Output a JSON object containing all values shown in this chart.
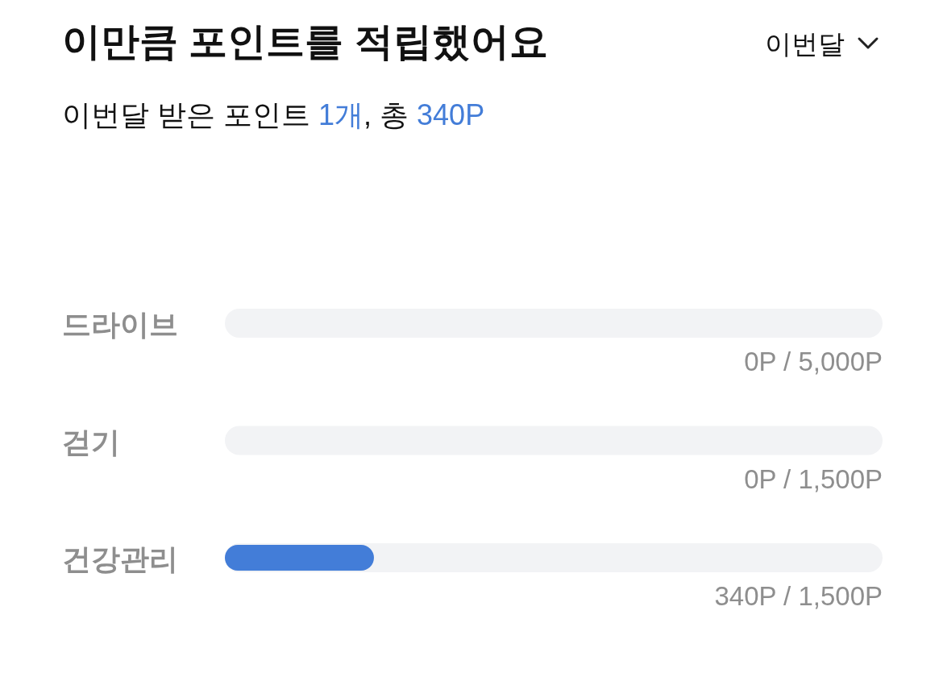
{
  "chart_data": [
    {
      "type": "bar",
      "orientation": "horizontal",
      "title": "이만큼 포인트를 적립했어요",
      "subtitle": "이번달 받은 포인트 1개, 총 340P",
      "annotations": [
        "이번달"
      ],
      "categories": [
        "드라이브"
      ],
      "series": [
        {
          "color": "#f2f3f5",
          "values": [
            5000
          ],
          "value_labels": [
            "0P / 5,000P"
          ]
        },
        {
          "color": "#437dd8",
          "values": [
            0
          ]
        }
      ],
      "tick_labels": "y"
    },
    {
      "type": "bar",
      "orientation": "horizontal",
      "categories": [
        "걷기"
      ],
      "series": [
        {
          "color": "#f2f3f5",
          "values": [
            1500
          ],
          "value_labels": [
            "0P / 1,500P"
          ]
        },
        {
          "color": "#437dd8",
          "values": [
            0
          ]
        }
      ],
      "tick_labels": "y"
    },
    {
      "type": "bar",
      "orientation": "horizontal",
      "categories": [
        "건강관리"
      ],
      "series": [
        {
          "color": "#f2f3f5",
          "values": [
            1500
          ],
          "value_labels": [
            "340P / 1,500P"
          ]
        },
        {
          "color": "#437dd8",
          "values": [
            340
          ]
        }
      ],
      "tick_labels": "y"
    }
  ]
}
